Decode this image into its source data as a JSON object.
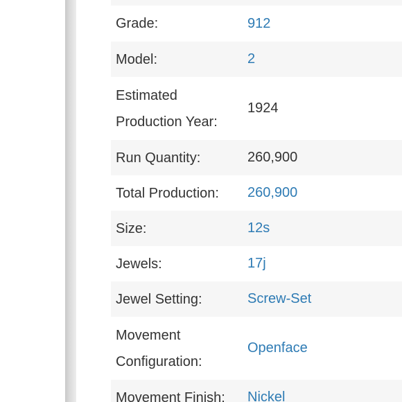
{
  "specs": [
    {
      "label": "Grade:",
      "value": "912",
      "link": true
    },
    {
      "label": "Model:",
      "value": "2",
      "link": true
    },
    {
      "label": "Estimated Production Year:",
      "value": "1924",
      "link": false
    },
    {
      "label": "Run Quantity:",
      "value": "260,900",
      "link": false
    },
    {
      "label": "Total Production:",
      "value": "260,900",
      "link": true
    },
    {
      "label": "Size:",
      "value": "12s",
      "link": true
    },
    {
      "label": "Jewels:",
      "value": "17j",
      "link": true
    },
    {
      "label": "Jewel Setting:",
      "value": "Screw-Set",
      "link": true
    },
    {
      "label": "Movement Configuration:",
      "value": "Openface",
      "link": true
    },
    {
      "label": "Movement Finish:",
      "value": "Nickel",
      "link": true
    }
  ],
  "colors": {
    "link": "#2e7bb4",
    "text": "#333333",
    "stripe": "#f6f6f6"
  }
}
